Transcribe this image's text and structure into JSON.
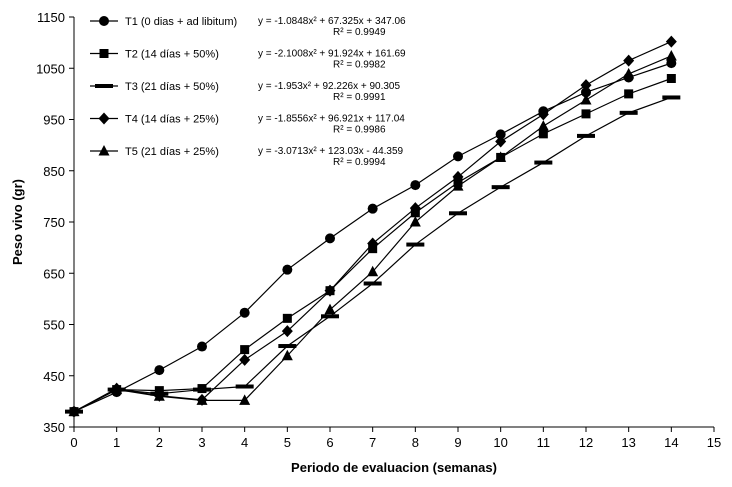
{
  "chart_data": {
    "type": "line",
    "xlabel": "Periodo de evaluacion (semanas)",
    "ylabel": "Peso vivo (gr)",
    "xlim": [
      0,
      15
    ],
    "ylim": [
      350,
      1150
    ],
    "x_ticks": [
      0,
      1,
      2,
      3,
      4,
      5,
      6,
      7,
      8,
      9,
      10,
      11,
      12,
      13,
      14,
      15
    ],
    "y_ticks": [
      350,
      450,
      550,
      650,
      750,
      850,
      950,
      1050,
      1150
    ],
    "grid": false,
    "legend_position": "top-left",
    "series": [
      {
        "name": "T1 (0 dias + ad libitum)",
        "marker": "circle",
        "equation": "y = -1.0848x² + 67.325x + 347.06",
        "r2": "R² = 0.9949",
        "x": [
          0,
          1,
          2,
          3,
          4,
          5,
          6,
          7,
          8,
          9,
          10,
          11,
          12,
          13,
          14
        ],
        "values": [
          380,
          418,
          461,
          507,
          573,
          657,
          718,
          776,
          822,
          878,
          921,
          966,
          1003,
          1032,
          1060
        ]
      },
      {
        "name": "T2 (14 días + 50%)",
        "marker": "square",
        "equation": "y = -2.1008x² + 91.924x + 161.69",
        "r2": "R² = 0.9982",
        "x": [
          0,
          1,
          2,
          3,
          4,
          5,
          6,
          7,
          8,
          9,
          10,
          11,
          12,
          13,
          14
        ],
        "values": [
          380,
          423,
          421,
          425,
          501,
          562,
          616,
          698,
          768,
          827,
          876,
          922,
          961,
          1000,
          1030
        ]
      },
      {
        "name": "T3 (21 días + 50%)",
        "marker": "dash",
        "equation": "y = -1.953x² + 92.226x + 90.305",
        "r2": "R² = 0.9991",
        "x": [
          0,
          1,
          2,
          3,
          4,
          5,
          6,
          7,
          8,
          9,
          10,
          11,
          12,
          13,
          14
        ],
        "values": [
          380,
          423,
          415,
          423,
          429,
          508,
          566,
          630,
          706,
          767,
          818,
          866,
          918,
          963,
          993
        ]
      },
      {
        "name": "T4 (14 días + 25%)",
        "marker": "diamond",
        "equation": "y = -1.8556x² + 96.921x + 117.04",
        "r2": "R² = 0.9986",
        "x": [
          0,
          1,
          2,
          3,
          4,
          5,
          6,
          7,
          8,
          9,
          10,
          11,
          12,
          13,
          14
        ],
        "values": [
          380,
          425,
          411,
          403,
          481,
          537,
          616,
          708,
          777,
          838,
          907,
          960,
          1017,
          1065,
          1102
        ]
      },
      {
        "name": "T5 (21 días + 25%)",
        "marker": "triangle",
        "equation": "y = -3.0713x² + 123.03x - 44.359",
        "r2": "R² = 0.9994",
        "x": [
          0,
          1,
          2,
          3,
          4,
          5,
          6,
          7,
          8,
          9,
          10,
          11,
          12,
          13,
          14
        ],
        "values": [
          380,
          423,
          410,
          402,
          402,
          489,
          579,
          653,
          750,
          820,
          876,
          937,
          988,
          1039,
          1074
        ]
      }
    ]
  }
}
